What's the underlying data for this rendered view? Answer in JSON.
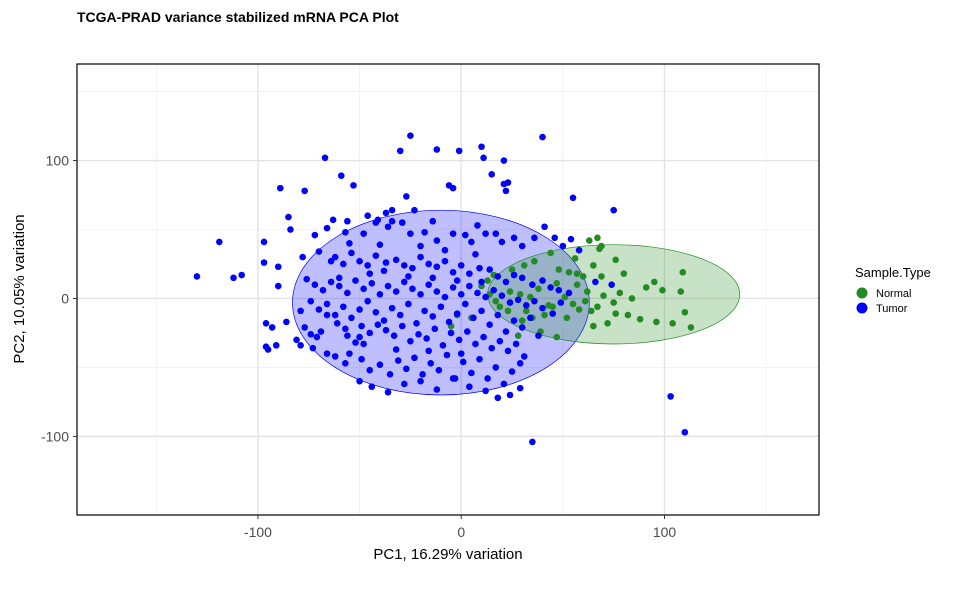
{
  "chart_data": {
    "type": "scatter",
    "title": "TCGA-PRAD variance stabilized mRNA PCA Plot",
    "xlabel": "PC1, 16.29% variation",
    "ylabel": "PC2, 10.05% variation",
    "xlim": [
      -189,
      176
    ],
    "ylim": [
      -157,
      170
    ],
    "xticks": [
      -100,
      0,
      100
    ],
    "yticks": [
      -100,
      0,
      100
    ],
    "grid": true,
    "legend": {
      "title": "Sample.Type",
      "position": "right"
    },
    "series": [
      {
        "name": "Normal",
        "color": "#228B22",
        "ellipse": {
          "cx": 75,
          "cy": 3,
          "rx": 62,
          "ry": 36
        },
        "points": [
          [
            63,
            42
          ],
          [
            67,
            44
          ],
          [
            68,
            36
          ],
          [
            69,
            38
          ],
          [
            56,
            29
          ],
          [
            65,
            24
          ],
          [
            76,
            28
          ],
          [
            48,
            21
          ],
          [
            53,
            19
          ],
          [
            57,
            18
          ],
          [
            60,
            16
          ],
          [
            69,
            16
          ],
          [
            80,
            18
          ],
          [
            95,
            12
          ],
          [
            109,
            19
          ],
          [
            91,
            8
          ],
          [
            99,
            6
          ],
          [
            108,
            5
          ],
          [
            113,
            -21
          ],
          [
            110,
            -10
          ],
          [
            104,
            -18
          ],
          [
            96,
            -17
          ],
          [
            88,
            -15
          ],
          [
            82,
            -12
          ],
          [
            76,
            -11
          ],
          [
            72,
            -18
          ],
          [
            65,
            -20
          ],
          [
            58,
            -8
          ],
          [
            55,
            -4
          ],
          [
            61,
            -2
          ],
          [
            51,
            1
          ],
          [
            45,
            -6
          ],
          [
            41,
            -12
          ],
          [
            35,
            -14
          ],
          [
            30,
            -16
          ],
          [
            23,
            -9
          ],
          [
            19,
            -6
          ],
          [
            14,
            3
          ],
          [
            10,
            9
          ],
          [
            13,
            13
          ],
          [
            16,
            17
          ],
          [
            25,
            21
          ],
          [
            31,
            24
          ],
          [
            36,
            27
          ],
          [
            44,
            33
          ],
          [
            29,
            3
          ],
          [
            38,
            7
          ],
          [
            47,
            11
          ],
          [
            62,
            5
          ],
          [
            70,
            2
          ],
          [
            78,
            4
          ],
          [
            84,
            0
          ],
          [
            75,
            -3
          ],
          [
            64,
            -9
          ],
          [
            52,
            -14
          ],
          [
            43,
            -5
          ],
          [
            34,
            1
          ],
          [
            24,
            5
          ],
          [
            17,
            -2
          ],
          [
            -5,
            -20
          ],
          [
            -2,
            -12
          ],
          [
            5,
            -14
          ],
          [
            28,
            -27
          ],
          [
            39,
            -24
          ],
          [
            47,
            -28
          ],
          [
            32,
            -9
          ],
          [
            57,
            10
          ],
          [
            67,
            -6
          ]
        ]
      },
      {
        "name": "Tumor",
        "color": "#0000FF",
        "ellipse": {
          "cx": -10,
          "cy": -3,
          "rx": 73,
          "ry": 67
        },
        "points": [
          [
            -130,
            16
          ],
          [
            -119,
            41
          ],
          [
            -97,
            41
          ],
          [
            -97,
            26
          ],
          [
            -90,
            23
          ],
          [
            -90,
            9
          ],
          [
            -96,
            -18
          ],
          [
            -93,
            -21
          ],
          [
            -96,
            -35
          ],
          [
            -95,
            -37
          ],
          [
            -91,
            -34
          ],
          [
            -86,
            -17
          ],
          [
            -81,
            -30
          ],
          [
            -79,
            -34
          ],
          [
            -74,
            -26
          ],
          [
            -73,
            -36
          ],
          [
            -71,
            -28
          ],
          [
            -66,
            -40
          ],
          [
            -56,
            -27
          ],
          [
            -55,
            -40
          ],
          [
            -52,
            -32
          ],
          [
            -50,
            -28
          ],
          [
            -89,
            80
          ],
          [
            -77,
            78
          ],
          [
            -67,
            102
          ],
          [
            -59,
            89
          ],
          [
            -53,
            82
          ],
          [
            -46,
            60
          ],
          [
            -56,
            56
          ],
          [
            -42,
            55
          ],
          [
            -37,
            62
          ],
          [
            -34,
            64
          ],
          [
            -27,
            74
          ],
          [
            -30,
            107
          ],
          [
            -25,
            118
          ],
          [
            -12,
            108
          ],
          [
            -1,
            107
          ],
          [
            10,
            110
          ],
          [
            11,
            102
          ],
          [
            15,
            90
          ],
          [
            21,
            100
          ],
          [
            21,
            83
          ],
          [
            23,
            84
          ],
          [
            22,
            78
          ],
          [
            40,
            117
          ],
          [
            55,
            73
          ],
          [
            75,
            64
          ],
          [
            66,
            12
          ],
          [
            74,
            10
          ],
          [
            -6,
            82
          ],
          [
            -4,
            80
          ],
          [
            -108,
            17
          ],
          [
            -112,
            15
          ],
          [
            -85,
            59
          ],
          [
            -66,
            51
          ],
          [
            -63,
            57
          ],
          [
            -57,
            48
          ],
          [
            -48,
            47
          ],
          [
            -41,
            57
          ],
          [
            -36,
            52
          ],
          [
            -34,
            56
          ],
          [
            -29,
            55
          ],
          [
            -25,
            47
          ],
          [
            -23,
            64
          ],
          [
            -18,
            48
          ],
          [
            -14,
            56
          ],
          [
            -12,
            42
          ],
          [
            -4,
            47
          ],
          [
            2,
            46
          ],
          [
            5,
            41
          ],
          [
            8,
            53
          ],
          [
            12,
            47
          ],
          [
            17,
            47
          ],
          [
            20,
            41
          ],
          [
            26,
            44
          ],
          [
            30,
            38
          ],
          [
            36,
            44
          ],
          [
            41,
            52
          ],
          [
            46,
            44
          ],
          [
            50,
            38
          ],
          [
            54,
            43
          ],
          [
            58,
            35
          ],
          [
            -78,
            30
          ],
          [
            -70,
            34
          ],
          [
            -64,
            27
          ],
          [
            -62,
            30
          ],
          [
            -58,
            25
          ],
          [
            -54,
            33
          ],
          [
            -50,
            27
          ],
          [
            -46,
            24
          ],
          [
            -42,
            31
          ],
          [
            -37,
            26
          ],
          [
            -32,
            28
          ],
          [
            -28,
            24
          ],
          [
            -24,
            22
          ],
          [
            -20,
            30
          ],
          [
            -16,
            25
          ],
          [
            -12,
            23
          ],
          [
            -8,
            27
          ],
          [
            -4,
            19
          ],
          [
            0,
            24
          ],
          [
            4,
            18
          ],
          [
            9,
            22
          ],
          [
            14,
            21
          ],
          [
            18,
            16
          ],
          [
            22,
            12
          ],
          [
            26,
            17
          ],
          [
            30,
            15
          ],
          [
            35,
            10
          ],
          [
            40,
            13
          ],
          [
            44,
            8
          ],
          [
            48,
            6
          ],
          [
            53,
            4
          ],
          [
            -76,
            14
          ],
          [
            -72,
            10
          ],
          [
            -68,
            6
          ],
          [
            -64,
            12
          ],
          [
            -60,
            9
          ],
          [
            -56,
            4
          ],
          [
            -52,
            13
          ],
          [
            -48,
            7
          ],
          [
            -44,
            11
          ],
          [
            -40,
            3
          ],
          [
            -36,
            9
          ],
          [
            -32,
            5
          ],
          [
            -28,
            12
          ],
          [
            -24,
            7
          ],
          [
            -20,
            3
          ],
          [
            -16,
            10
          ],
          [
            -12,
            5
          ],
          [
            -8,
            1
          ],
          [
            -4,
            8
          ],
          [
            0,
            3
          ],
          [
            4,
            9
          ],
          [
            8,
            4
          ],
          [
            12,
            1
          ],
          [
            16,
            6
          ],
          [
            20,
            2
          ],
          [
            24,
            -3
          ],
          [
            28,
            -1
          ],
          [
            32,
            -5
          ],
          [
            36,
            -2
          ],
          [
            40,
            -7
          ],
          [
            45,
            -11
          ],
          [
            49,
            -3
          ],
          [
            -79,
            -9
          ],
          [
            -74,
            -2
          ],
          [
            -70,
            -8
          ],
          [
            -66,
            -4
          ],
          [
            -62,
            -12
          ],
          [
            -58,
            -6
          ],
          [
            -54,
            -14
          ],
          [
            -50,
            -8
          ],
          [
            -46,
            -2
          ],
          [
            -42,
            -10
          ],
          [
            -38,
            -16
          ],
          [
            -34,
            -7
          ],
          [
            -30,
            -12
          ],
          [
            -26,
            -4
          ],
          [
            -22,
            -18
          ],
          [
            -18,
            -9
          ],
          [
            -14,
            -13
          ],
          [
            -10,
            -6
          ],
          [
            -6,
            -17
          ],
          [
            -2,
            -11
          ],
          [
            2,
            -4
          ],
          [
            6,
            -14
          ],
          [
            10,
            -9
          ],
          [
            14,
            -19
          ],
          [
            18,
            -12
          ],
          [
            22,
            -24
          ],
          [
            26,
            -16
          ],
          [
            30,
            -21
          ],
          [
            34,
            -14
          ],
          [
            38,
            -27
          ],
          [
            -77,
            -21
          ],
          [
            -69,
            -24
          ],
          [
            -61,
            -18
          ],
          [
            -57,
            -22
          ],
          [
            -49,
            -20
          ],
          [
            -45,
            -25
          ],
          [
            -41,
            -19
          ],
          [
            -37,
            -23
          ],
          [
            -33,
            -27
          ],
          [
            -29,
            -20
          ],
          [
            -25,
            -31
          ],
          [
            -21,
            -26
          ],
          [
            -17,
            -29
          ],
          [
            -13,
            -22
          ],
          [
            -9,
            -34
          ],
          [
            -5,
            -25
          ],
          [
            -1,
            -30
          ],
          [
            3,
            -24
          ],
          [
            7,
            -33
          ],
          [
            11,
            -28
          ],
          [
            15,
            -36
          ],
          [
            19,
            -31
          ],
          [
            23,
            -38
          ],
          [
            27,
            -33
          ],
          [
            31,
            -42
          ],
          [
            -62,
            -42
          ],
          [
            -57,
            -47
          ],
          [
            -49,
            -44
          ],
          [
            -45,
            -52
          ],
          [
            -40,
            -48
          ],
          [
            -35,
            -55
          ],
          [
            -31,
            -45
          ],
          [
            -27,
            -51
          ],
          [
            -23,
            -43
          ],
          [
            -19,
            -55
          ],
          [
            -15,
            -47
          ],
          [
            -11,
            -52
          ],
          [
            -7,
            -41
          ],
          [
            -3,
            -58
          ],
          [
            1,
            -46
          ],
          [
            5,
            -54
          ],
          [
            9,
            -44
          ],
          [
            13,
            -58
          ],
          [
            17,
            -50
          ],
          [
            21,
            -62
          ],
          [
            25,
            -53
          ],
          [
            29,
            -47
          ],
          [
            -50,
            -60
          ],
          [
            -44,
            -64
          ],
          [
            -36,
            -68
          ],
          [
            -28,
            -62
          ],
          [
            -20,
            -60
          ],
          [
            -12,
            -66
          ],
          [
            -4,
            -58
          ],
          [
            4,
            -64
          ],
          [
            12,
            -67
          ],
          [
            18,
            -72
          ],
          [
            24,
            -70
          ],
          [
            29,
            -65
          ],
          [
            35,
            -104
          ],
          [
            103,
            -71
          ],
          [
            110,
            -97
          ],
          [
            -60,
            15
          ],
          [
            -45,
            18
          ],
          [
            -38,
            20
          ],
          [
            -26,
            16
          ],
          [
            -14,
            15
          ],
          [
            -2,
            13
          ],
          [
            10,
            12
          ],
          [
            -66,
            -12
          ],
          [
            -48,
            -33
          ],
          [
            -32,
            -37
          ],
          [
            -16,
            -38
          ],
          [
            0,
            -40
          ],
          [
            -55,
            40
          ],
          [
            -40,
            39
          ],
          [
            -20,
            38
          ],
          [
            -8,
            35
          ],
          [
            7,
            32
          ],
          [
            -72,
            46
          ],
          [
            -84,
            50
          ]
        ]
      }
    ]
  }
}
